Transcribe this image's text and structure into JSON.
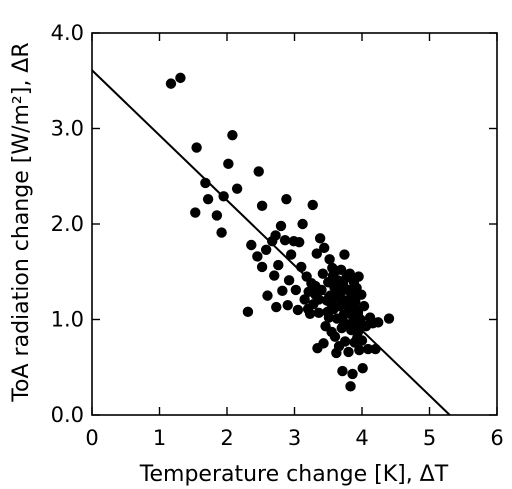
{
  "chart_data": {
    "type": "scatter",
    "title": "",
    "xlabel": "Temperature change [K], ΔT",
    "ylabel": "ToA radiation change [W/m²], ΔR",
    "xlim": [
      0,
      6
    ],
    "ylim": [
      0,
      4
    ],
    "x_ticks": [
      "0",
      "1",
      "2",
      "3",
      "4",
      "5",
      "6"
    ],
    "y_ticks": [
      "0.0",
      "1.0",
      "2.0",
      "3.0",
      "4.0"
    ],
    "grid": false,
    "legend": "none",
    "marker_color": "#000000",
    "series": [
      {
        "points": [
          [
            1.17,
            3.47
          ],
          [
            1.31,
            3.53
          ],
          [
            1.55,
            2.8
          ],
          [
            1.53,
            2.12
          ],
          [
            1.68,
            2.43
          ],
          [
            1.72,
            2.26
          ],
          [
            1.85,
            2.09
          ],
          [
            1.92,
            1.91
          ],
          [
            1.95,
            2.29
          ],
          [
            2.02,
            2.63
          ],
          [
            2.08,
            2.93
          ],
          [
            2.15,
            2.37
          ],
          [
            2.31,
            1.08
          ],
          [
            2.36,
            1.78
          ],
          [
            2.45,
            1.66
          ],
          [
            2.47,
            2.55
          ],
          [
            2.52,
            1.55
          ],
          [
            2.52,
            2.19
          ],
          [
            2.58,
            1.73
          ],
          [
            2.6,
            1.25
          ],
          [
            2.67,
            1.82
          ],
          [
            2.7,
            1.46
          ],
          [
            2.72,
            1.88
          ],
          [
            2.73,
            1.13
          ],
          [
            2.76,
            1.57
          ],
          [
            2.8,
            1.98
          ],
          [
            2.82,
            1.3
          ],
          [
            2.86,
            1.83
          ],
          [
            2.88,
            2.26
          ],
          [
            2.9,
            1.15
          ],
          [
            2.92,
            1.41
          ],
          [
            2.95,
            1.68
          ],
          [
            2.99,
            1.82
          ],
          [
            3.02,
            1.31
          ],
          [
            3.05,
            1.1
          ],
          [
            3.07,
            1.81
          ],
          [
            3.1,
            1.55
          ],
          [
            3.12,
            2.0
          ],
          [
            3.15,
            1.21
          ],
          [
            3.18,
            1.45
          ],
          [
            3.21,
            1.29
          ],
          [
            3.23,
            1.06
          ],
          [
            3.25,
            1.38
          ],
          [
            3.27,
            2.2
          ],
          [
            3.28,
            1.16
          ],
          [
            3.31,
            1.26
          ],
          [
            3.33,
            1.69
          ],
          [
            3.34,
            0.7
          ],
          [
            3.36,
            1.07
          ],
          [
            3.38,
            1.85
          ],
          [
            3.4,
            1.31
          ],
          [
            3.42,
            1.48
          ],
          [
            3.43,
            0.75
          ],
          [
            3.44,
            1.75
          ],
          [
            3.46,
            0.93
          ],
          [
            3.48,
            1.2
          ],
          [
            3.5,
            1.39
          ],
          [
            3.51,
            1.02
          ],
          [
            3.52,
            1.63
          ],
          [
            3.53,
            1.25
          ],
          [
            3.55,
            0.87
          ],
          [
            3.56,
            1.54
          ],
          [
            3.57,
            1.46
          ],
          [
            3.58,
            1.11
          ],
          [
            3.59,
            1.34
          ],
          [
            3.6,
            0.82
          ],
          [
            3.61,
            1.51
          ],
          [
            3.62,
            0.65
          ],
          [
            3.63,
            1.01
          ],
          [
            3.64,
            1.41
          ],
          [
            3.65,
            1.23
          ],
          [
            3.66,
            0.72
          ],
          [
            3.67,
            1.14
          ],
          [
            3.68,
            1.28
          ],
          [
            3.69,
            1.52
          ],
          [
            3.7,
            0.91
          ],
          [
            3.71,
            0.46
          ],
          [
            3.72,
            1.37
          ],
          [
            3.73,
            1.05
          ],
          [
            3.74,
            1.68
          ],
          [
            3.75,
            0.77
          ],
          [
            3.76,
            1.2
          ],
          [
            3.77,
            1.44
          ],
          [
            3.78,
            0.95
          ],
          [
            3.79,
            1.31
          ],
          [
            3.8,
            0.66
          ],
          [
            3.81,
            1.12
          ],
          [
            3.82,
            1.48
          ],
          [
            3.83,
            0.3
          ],
          [
            3.84,
            0.89
          ],
          [
            3.85,
            1.25
          ],
          [
            3.86,
            0.43
          ],
          [
            3.87,
            1.03
          ],
          [
            3.88,
            1.39
          ],
          [
            3.89,
            0.76
          ],
          [
            3.9,
            1.19
          ],
          [
            3.91,
            0.94
          ],
          [
            3.92,
            1.33
          ],
          [
            3.93,
            0.81
          ],
          [
            3.94,
            1.07
          ],
          [
            3.95,
            1.45
          ],
          [
            3.96,
            0.68
          ],
          [
            3.98,
            1.0
          ],
          [
            3.99,
            1.26
          ],
          [
            4.0,
            0.78
          ],
          [
            4.01,
            0.49
          ],
          [
            4.03,
            1.14
          ],
          [
            4.06,
            0.93
          ],
          [
            4.09,
            0.69
          ],
          [
            4.12,
            1.02
          ],
          [
            4.16,
            0.96
          ],
          [
            4.2,
            0.69
          ],
          [
            4.24,
            0.97
          ],
          [
            4.4,
            1.01
          ],
          [
            3.2,
            1.11
          ],
          [
            3.31,
            1.35
          ],
          [
            3.36,
            1.21
          ],
          [
            3.49,
            1.08
          ],
          [
            3.54,
            1.17
          ],
          [
            3.62,
            1.26
          ],
          [
            3.71,
            1.0
          ],
          [
            3.8,
            1.08
          ],
          [
            3.89,
            1.13
          ],
          [
            3.94,
            0.87
          ],
          [
            3.99,
            0.93
          ]
        ]
      }
    ],
    "fit_line": {
      "x": [
        0,
        5.3
      ],
      "y": [
        3.61,
        0.0
      ]
    }
  }
}
